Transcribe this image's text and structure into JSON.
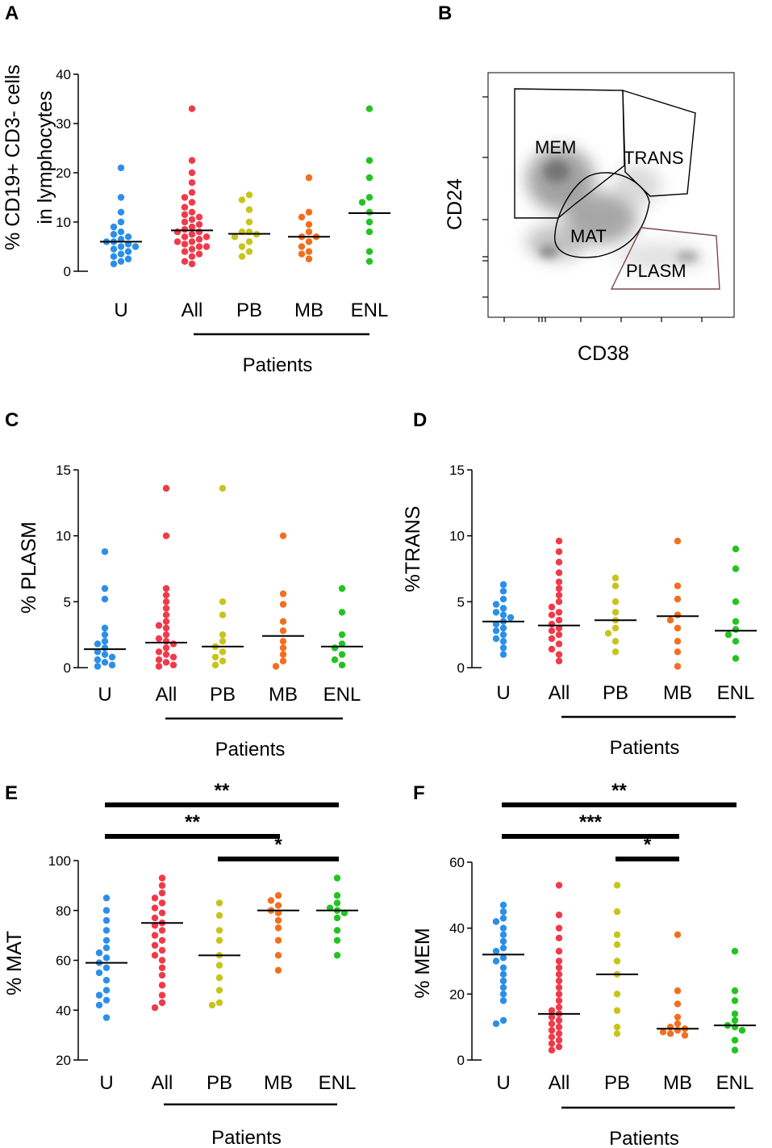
{
  "colors": {
    "U": "#2b8fe8",
    "All": "#f03a4a",
    "PB": "#c8c41c",
    "MB": "#f26f1f",
    "ENL": "#22c422"
  },
  "chart_data": [
    {
      "panel": "A",
      "type": "scatter",
      "categories": [
        "U",
        "All",
        "PB",
        "MB",
        "ENL"
      ],
      "ylabel_lines": [
        "% CD19+ CD3- cells",
        "in lymphocytes"
      ],
      "ylim": [
        0,
        40
      ],
      "yticks": [
        "0",
        "10",
        "20",
        "30",
        "40"
      ],
      "group_label": "Patients",
      "medians": [
        6,
        8.3,
        7.6,
        7,
        11.8
      ],
      "points": [
        [
          21,
          15,
          12,
          10,
          9,
          8,
          7.5,
          7,
          6.5,
          6,
          6,
          5.5,
          5,
          5,
          4.5,
          4,
          3.5,
          3,
          2.5,
          2,
          1.5
        ],
        [
          33,
          22.5,
          20,
          18,
          16,
          15,
          14,
          13,
          12,
          11.5,
          11,
          10.5,
          10,
          9.5,
          9,
          8.5,
          8,
          8,
          7.5,
          7,
          7,
          6.5,
          6,
          6,
          5.5,
          5,
          5,
          4.5,
          4,
          3.5,
          3,
          2,
          1.5
        ],
        [
          15.5,
          14.5,
          12.5,
          10,
          8,
          8,
          7.5,
          7,
          6,
          5,
          4,
          3
        ],
        [
          19,
          12,
          11,
          9.5,
          8,
          7,
          7,
          6,
          5,
          4,
          3.5,
          2.5
        ],
        [
          33,
          22.5,
          19,
          15,
          14,
          12,
          10,
          8,
          4,
          2
        ]
      ]
    },
    {
      "panel": "C",
      "type": "scatter",
      "categories": [
        "U",
        "All",
        "PB",
        "MB",
        "ENL"
      ],
      "ylabel": "% PLASM",
      "ylim": [
        0,
        15
      ],
      "yticks": [
        "0",
        "5",
        "10",
        "15"
      ],
      "group_label": "Patients",
      "medians": [
        1.4,
        1.9,
        1.6,
        2.4,
        1.6
      ],
      "points": [
        [
          8.8,
          6,
          5.2,
          3,
          2.5,
          2,
          1.8,
          1.5,
          1.2,
          1,
          0.8,
          0.6,
          0.4,
          0.2,
          0.1
        ],
        [
          13.6,
          10,
          6,
          5.5,
          5,
          4.5,
          4,
          3.5,
          3.2,
          3,
          2.5,
          2.2,
          2,
          1.8,
          1.5,
          1.2,
          1,
          0.8,
          0.6,
          0.4,
          0.2,
          0.1
        ],
        [
          13.6,
          5,
          4,
          2.5,
          2,
          1.6,
          1.2,
          0.8,
          0.5,
          0.2
        ],
        [
          10,
          5.6,
          4.8,
          3.5,
          2.8,
          2,
          1.5,
          1,
          0.5,
          0.1
        ],
        [
          6,
          4.2,
          2.5,
          1.8,
          1.5,
          1,
          0.6,
          0.2
        ]
      ]
    },
    {
      "panel": "D",
      "type": "scatter",
      "categories": [
        "U",
        "All",
        "PB",
        "MB",
        "ENL"
      ],
      "ylabel": "%TRANS",
      "ylim": [
        0,
        15
      ],
      "yticks": [
        "0",
        "5",
        "10",
        "15"
      ],
      "group_label": "Patients",
      "medians": [
        3.5,
        3.2,
        3.6,
        3.9,
        2.8
      ],
      "points": [
        [
          6.3,
          5.8,
          5.2,
          4.8,
          4.5,
          4.2,
          4,
          3.8,
          3.5,
          3.3,
          3,
          2.8,
          2.5,
          2.2,
          2,
          1.5,
          1
        ],
        [
          9.6,
          8.8,
          8,
          7.2,
          6.5,
          6,
          5.5,
          5,
          4.6,
          4.2,
          4,
          3.6,
          3.3,
          3,
          2.8,
          2.5,
          2.2,
          1.8,
          1.4,
          1,
          0.5
        ],
        [
          6.8,
          6.2,
          5,
          4.2,
          3.6,
          3,
          2.6,
          2,
          1.2
        ],
        [
          9.6,
          6.2,
          5.2,
          4,
          3.6,
          3,
          2,
          1.2,
          0.1
        ],
        [
          9,
          7.5,
          5,
          3.5,
          2.9,
          2.5,
          2,
          0.7
        ]
      ]
    },
    {
      "panel": "E",
      "type": "scatter",
      "categories": [
        "U",
        "All",
        "PB",
        "MB",
        "ENL"
      ],
      "ylabel": "% MAT",
      "ylim": [
        20,
        100
      ],
      "yticks": [
        "20",
        "40",
        "60",
        "80",
        "100"
      ],
      "group_label": "Patients",
      "medians": [
        59,
        75,
        62,
        80,
        80
      ],
      "points": [
        [
          85,
          80,
          76,
          72,
          68,
          65,
          63,
          61,
          59,
          57,
          55,
          52,
          48,
          46,
          44,
          42,
          37
        ],
        [
          93,
          90,
          87,
          85,
          83,
          81,
          79,
          77,
          75,
          74,
          72,
          70,
          68,
          66,
          64,
          62,
          60,
          57,
          54,
          50,
          46,
          43,
          41
        ],
        [
          83,
          78,
          72,
          68,
          62,
          58,
          53,
          48,
          43,
          42
        ],
        [
          86,
          84,
          82,
          80,
          79,
          76,
          73,
          68,
          62,
          56
        ],
        [
          93,
          86,
          83,
          81,
          80,
          79,
          77,
          72,
          68,
          62
        ]
      ],
      "significance": [
        {
          "from": "U",
          "to": "ENL",
          "label": "**"
        },
        {
          "from": "U",
          "to": "MB",
          "label": "**"
        },
        {
          "from": "PB",
          "to": "ENL",
          "label": "*"
        }
      ]
    },
    {
      "panel": "F",
      "type": "scatter",
      "categories": [
        "U",
        "All",
        "PB",
        "MB",
        "ENL"
      ],
      "ylabel": "% MEM",
      "ylim": [
        0,
        60
      ],
      "yticks": [
        "0",
        "20",
        "40",
        "60"
      ],
      "group_label": "Patients",
      "medians": [
        32,
        14,
        26,
        9.5,
        10.5
      ],
      "points": [
        [
          47,
          45,
          43,
          42,
          40,
          38,
          36,
          34,
          33,
          31,
          30,
          28,
          26,
          24,
          22,
          20,
          18,
          12,
          11
        ],
        [
          53,
          44,
          40,
          37,
          33,
          30,
          28,
          26,
          24,
          22,
          20,
          18,
          16,
          15,
          14,
          13,
          12,
          11,
          10,
          9,
          8,
          7,
          6,
          5,
          4,
          3
        ],
        [
          53,
          45,
          38,
          35,
          30,
          26,
          20,
          15,
          10,
          8
        ],
        [
          38,
          21,
          17,
          13,
          11,
          10,
          9.5,
          9,
          8.5,
          8,
          7.5
        ],
        [
          33,
          21,
          18,
          14,
          12,
          10.5,
          10,
          9,
          6,
          3
        ]
      ],
      "significance": [
        {
          "from": "U",
          "to": "ENL",
          "label": "**"
        },
        {
          "from": "U",
          "to": "MB",
          "label": "***"
        },
        {
          "from": "PB",
          "to": "MB",
          "label": "*"
        }
      ]
    },
    {
      "panel": "B",
      "type": "flow-gating",
      "xlabel": "CD38",
      "ylabel": "CD24",
      "gates": [
        "MEM",
        "TRANS",
        "MAT",
        "PLASM"
      ]
    }
  ]
}
